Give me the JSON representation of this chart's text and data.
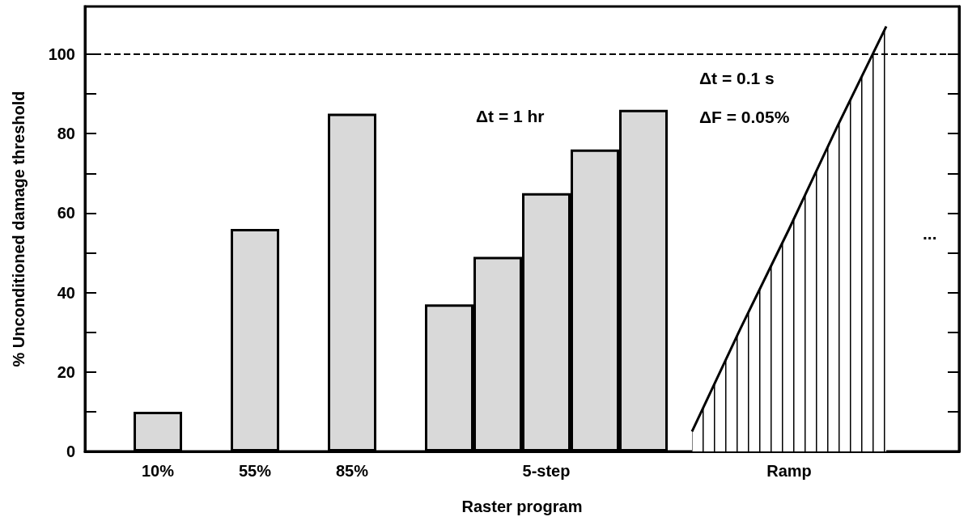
{
  "chart_data": {
    "type": "bar",
    "xlabel": "Raster program",
    "ylabel": "% Unconditioned damage threshold",
    "categories": [
      null,
      "10%",
      null,
      "55%",
      null,
      "85%",
      null,
      null,
      null,
      "5-step",
      null,
      null,
      null,
      null,
      "Ramp",
      null,
      null,
      null
    ],
    "series": [
      {
        "color": "#d9d9d9",
        "values": [
          null,
          10,
          null,
          56,
          null,
          85,
          null,
          37,
          49,
          65,
          76,
          86,
          null,
          null,
          null,
          null,
          null,
          null
        ]
      },
      {
        "type": "area",
        "color": "#000000",
        "values": [
          null,
          null,
          null,
          null,
          null,
          null,
          null,
          null,
          null,
          null,
          null,
          null,
          5,
          31,
          56,
          82,
          107,
          null
        ]
      }
    ],
    "ylim": [
      0,
      112
    ],
    "yticks": [
      0,
      {
        "value": 10,
        "label": null
      },
      20,
      {
        "value": 30,
        "label": null
      },
      40,
      {
        "value": 50,
        "label": null
      },
      60,
      {
        "value": 70,
        "label": null
      },
      80,
      {
        "value": 90,
        "label": null
      },
      100
    ],
    "ref_lines": [
      {
        "axis": "y",
        "value": 100,
        "color": "#000000",
        "line_style": "dashed"
      }
    ],
    "annotations": [
      "Δt = 1 hr",
      "Δt = 0.1 s",
      "ΔF = 0.05%",
      "..."
    ],
    "grid": false
  }
}
